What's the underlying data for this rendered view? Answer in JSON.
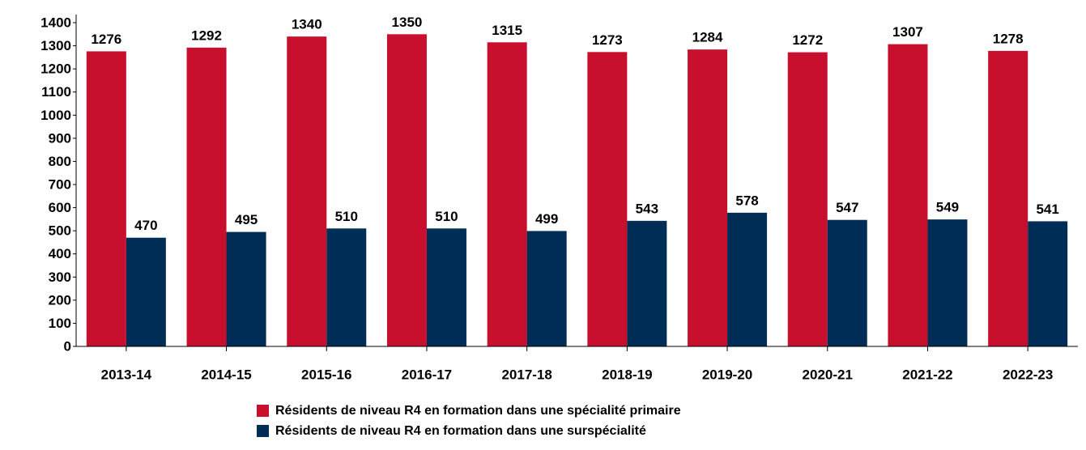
{
  "chart_data": {
    "type": "bar",
    "categories": [
      "2013-14",
      "2014-15",
      "2015-16",
      "2016-17",
      "2017-18",
      "2018-19",
      "2019-20",
      "2020-21",
      "2021-22",
      "2022-23"
    ],
    "series": [
      {
        "name": "Résidents de niveau R4 en formation dans une spécialité primaire",
        "color": "#c8102e",
        "values": [
          1276,
          1292,
          1340,
          1350,
          1315,
          1273,
          1284,
          1272,
          1307,
          1278
        ]
      },
      {
        "name": "Résidents de niveau R4 en formation dans une surspécialité",
        "color": "#002d56",
        "values": [
          470,
          495,
          510,
          510,
          499,
          543,
          578,
          547,
          549,
          541
        ]
      }
    ],
    "ylim": [
      0,
      1400
    ],
    "yticks": [
      0,
      100,
      200,
      300,
      400,
      500,
      600,
      700,
      800,
      900,
      1000,
      1100,
      1200,
      1300,
      1400
    ],
    "grid": false
  }
}
